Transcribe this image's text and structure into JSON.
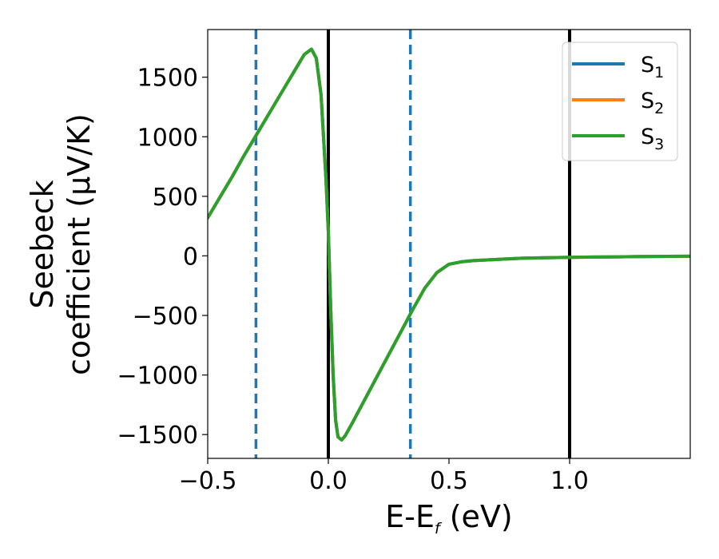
{
  "chart_data": {
    "type": "line",
    "xlabel": "E-E",
    "xlabel_sub": "f",
    "xlabel_unit": " (eV)",
    "ylabel_line1": "Seebeck",
    "ylabel_line2": "coefficient  (μV/K)",
    "xlim": [
      -0.5,
      1.5
    ],
    "ylim": [
      -1700,
      1900
    ],
    "xticks": [
      -0.5,
      0.0,
      0.5,
      1.0
    ],
    "xtick_labels": [
      "−0.5",
      "0.0",
      "0.5",
      "1.0"
    ],
    "yticks": [
      1500,
      1000,
      500,
      0,
      -500,
      -1000,
      -1500
    ],
    "ytick_labels": [
      "1500",
      "1000",
      "500",
      "0",
      "−500",
      "−1000",
      "−1500"
    ],
    "legend_position": "top-right",
    "vlines": [
      {
        "x": -0.3,
        "style": "dashed",
        "color": "#1f77b4"
      },
      {
        "x": 0.34,
        "style": "dashed",
        "color": "#1f77b4"
      },
      {
        "x": 0.0,
        "style": "solid",
        "color": "#000000"
      },
      {
        "x": 1.0,
        "style": "solid",
        "color": "#000000"
      }
    ],
    "series": [
      {
        "base": "S",
        "sub": "1",
        "color": "#1f77b4",
        "x": [
          -0.5,
          -0.45,
          -0.4,
          -0.35,
          -0.3,
          -0.25,
          -0.2,
          -0.15,
          -0.1,
          -0.07,
          -0.05,
          -0.03,
          -0.01,
          0.0,
          0.01,
          0.02,
          0.03,
          0.04,
          0.055,
          0.07,
          0.1,
          0.15,
          0.2,
          0.25,
          0.3,
          0.35,
          0.4,
          0.45,
          0.5,
          0.55,
          0.6,
          0.65,
          0.7,
          0.75,
          0.8,
          0.9,
          1.0,
          1.1,
          1.2,
          1.3,
          1.4,
          1.5
        ],
        "y": [
          320,
          490,
          660,
          840,
          1010,
          1180,
          1350,
          1520,
          1690,
          1735,
          1660,
          1350,
          650,
          200,
          -450,
          -1000,
          -1380,
          -1520,
          -1545,
          -1510,
          -1400,
          -1210,
          -1020,
          -830,
          -640,
          -450,
          -270,
          -140,
          -70,
          -50,
          -40,
          -35,
          -30,
          -25,
          -20,
          -15,
          -12,
          -10,
          -8,
          -6,
          -4,
          -3
        ]
      },
      {
        "base": "S",
        "sub": "2",
        "color": "#ff7f0e",
        "x": [
          -0.5,
          -0.45,
          -0.4,
          -0.35,
          -0.3,
          -0.25,
          -0.2,
          -0.15,
          -0.1,
          -0.07,
          -0.05,
          -0.03,
          -0.01,
          0.0,
          0.01,
          0.02,
          0.03,
          0.04,
          0.055,
          0.07,
          0.1,
          0.15,
          0.2,
          0.25,
          0.3,
          0.35,
          0.4,
          0.45,
          0.5,
          0.55,
          0.6,
          0.65,
          0.7,
          0.75,
          0.8,
          0.9,
          1.0,
          1.1,
          1.2,
          1.3,
          1.4,
          1.5
        ],
        "y": [
          320,
          490,
          660,
          840,
          1010,
          1180,
          1350,
          1520,
          1690,
          1735,
          1660,
          1350,
          650,
          200,
          -450,
          -1000,
          -1380,
          -1520,
          -1545,
          -1510,
          -1400,
          -1210,
          -1020,
          -830,
          -640,
          -450,
          -270,
          -140,
          -70,
          -50,
          -40,
          -35,
          -30,
          -25,
          -20,
          -15,
          -12,
          -10,
          -8,
          -6,
          -4,
          -3
        ]
      },
      {
        "base": "S",
        "sub": "3",
        "color": "#2ca02c",
        "x": [
          -0.5,
          -0.45,
          -0.4,
          -0.35,
          -0.3,
          -0.25,
          -0.2,
          -0.15,
          -0.1,
          -0.07,
          -0.05,
          -0.03,
          -0.01,
          0.0,
          0.01,
          0.02,
          0.03,
          0.04,
          0.055,
          0.07,
          0.1,
          0.15,
          0.2,
          0.25,
          0.3,
          0.35,
          0.4,
          0.45,
          0.5,
          0.55,
          0.6,
          0.65,
          0.7,
          0.75,
          0.8,
          0.9,
          1.0,
          1.1,
          1.2,
          1.3,
          1.4,
          1.5
        ],
        "y": [
          320,
          490,
          660,
          840,
          1010,
          1180,
          1350,
          1520,
          1690,
          1735,
          1660,
          1350,
          650,
          200,
          -450,
          -1000,
          -1380,
          -1520,
          -1545,
          -1510,
          -1400,
          -1210,
          -1020,
          -830,
          -640,
          -450,
          -270,
          -140,
          -70,
          -50,
          -40,
          -35,
          -30,
          -25,
          -20,
          -15,
          -12,
          -10,
          -8,
          -6,
          -4,
          -3
        ]
      }
    ]
  }
}
